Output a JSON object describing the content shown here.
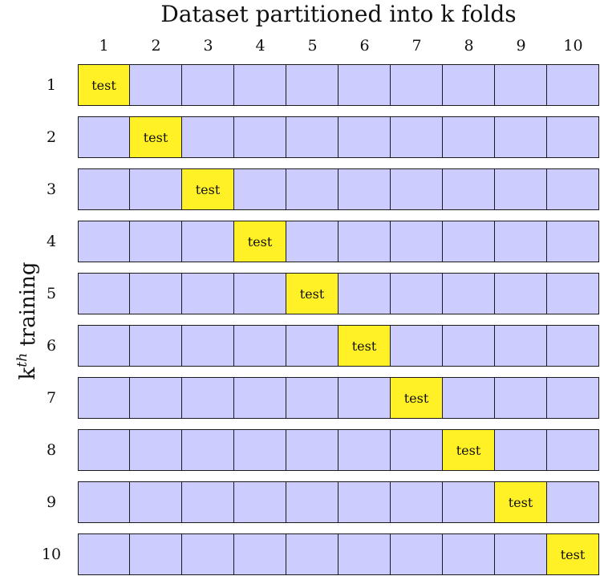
{
  "title": "Dataset partitioned into k folds",
  "y_label": {
    "text": "k",
    "superscript": "th",
    "rest": " training"
  },
  "folds": [
    "1",
    "2",
    "3",
    "4",
    "5",
    "6",
    "7",
    "8",
    "9",
    "10"
  ],
  "trainings": [
    "1",
    "2",
    "3",
    "4",
    "5",
    "6",
    "7",
    "8",
    "9",
    "10"
  ],
  "test_label": "test",
  "test_fold_by_training": [
    1,
    2,
    3,
    4,
    5,
    6,
    7,
    8,
    9,
    10
  ],
  "colors": {
    "train": "#ccccff",
    "test": "#fff125",
    "border": "#1a1a1a"
  }
}
